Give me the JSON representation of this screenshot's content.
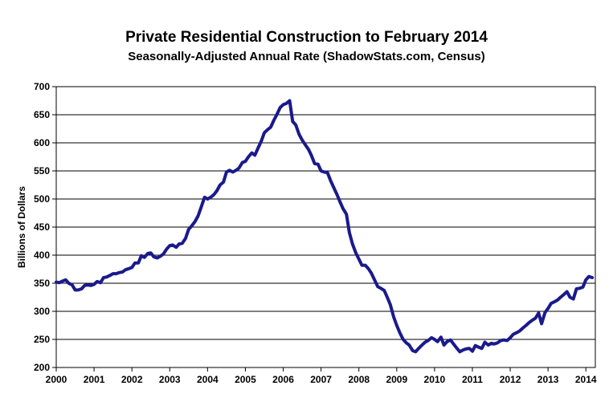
{
  "chart_data": {
    "type": "line",
    "title": "Private Residential Construction to February 2014",
    "subtitle": "Seasonally-Adjusted Annual Rate (ShadowStats.com, Census)",
    "xlabel": "",
    "ylabel": "Billions of Dollars",
    "xlim": [
      2000,
      2014.25
    ],
    "ylim": [
      200,
      700
    ],
    "x_ticks": [
      2000,
      2001,
      2002,
      2003,
      2004,
      2005,
      2006,
      2007,
      2008,
      2009,
      2010,
      2011,
      2012,
      2013,
      2014
    ],
    "x_tick_labels": [
      "2000",
      "2001",
      "2002",
      "2003",
      "2004",
      "2005",
      "2006",
      "2007",
      "2008",
      "2009",
      "2010",
      "2011",
      "2012",
      "2013",
      "2014"
    ],
    "y_ticks": [
      200,
      250,
      300,
      350,
      400,
      450,
      500,
      550,
      600,
      650,
      700
    ],
    "y_tick_labels": [
      "200",
      "250",
      "300",
      "350",
      "400",
      "450",
      "500",
      "550",
      "600",
      "650",
      "700"
    ],
    "grid": "horizontal",
    "legend": "none",
    "line_color": "#1a1a8c",
    "series": [
      {
        "values": [
          [
            2000.0,
            352
          ],
          [
            2000.08,
            351
          ],
          [
            2000.17,
            354
          ],
          [
            2000.25,
            356
          ],
          [
            2000.33,
            350
          ],
          [
            2000.42,
            347
          ],
          [
            2000.5,
            338
          ],
          [
            2000.58,
            338
          ],
          [
            2000.67,
            340
          ],
          [
            2000.75,
            346
          ],
          [
            2000.83,
            347
          ],
          [
            2000.92,
            346
          ],
          [
            2001.0,
            348
          ],
          [
            2001.08,
            353
          ],
          [
            2001.17,
            351
          ],
          [
            2001.25,
            360
          ],
          [
            2001.33,
            361
          ],
          [
            2001.42,
            364
          ],
          [
            2001.5,
            367
          ],
          [
            2001.58,
            367
          ],
          [
            2001.67,
            369
          ],
          [
            2001.75,
            370
          ],
          [
            2001.83,
            374
          ],
          [
            2001.92,
            376
          ],
          [
            2002.0,
            378
          ],
          [
            2002.08,
            386
          ],
          [
            2002.17,
            386
          ],
          [
            2002.25,
            399
          ],
          [
            2002.33,
            396
          ],
          [
            2002.42,
            403
          ],
          [
            2002.5,
            404
          ],
          [
            2002.58,
            397
          ],
          [
            2002.67,
            395
          ],
          [
            2002.75,
            398
          ],
          [
            2002.83,
            402
          ],
          [
            2002.92,
            411
          ],
          [
            2003.0,
            417
          ],
          [
            2003.08,
            418
          ],
          [
            2003.17,
            414
          ],
          [
            2003.25,
            420
          ],
          [
            2003.33,
            421
          ],
          [
            2003.42,
            430
          ],
          [
            2003.5,
            446
          ],
          [
            2003.58,
            452
          ],
          [
            2003.67,
            460
          ],
          [
            2003.75,
            470
          ],
          [
            2003.83,
            485
          ],
          [
            2003.92,
            503
          ],
          [
            2004.0,
            500
          ],
          [
            2004.08,
            503
          ],
          [
            2004.17,
            508
          ],
          [
            2004.25,
            515
          ],
          [
            2004.33,
            525
          ],
          [
            2004.42,
            530
          ],
          [
            2004.5,
            548
          ],
          [
            2004.58,
            551
          ],
          [
            2004.67,
            548
          ],
          [
            2004.75,
            551
          ],
          [
            2004.83,
            555
          ],
          [
            2004.92,
            565
          ],
          [
            2005.0,
            567
          ],
          [
            2005.08,
            575
          ],
          [
            2005.17,
            582
          ],
          [
            2005.25,
            578
          ],
          [
            2005.33,
            590
          ],
          [
            2005.42,
            603
          ],
          [
            2005.5,
            618
          ],
          [
            2005.58,
            623
          ],
          [
            2005.67,
            628
          ],
          [
            2005.75,
            640
          ],
          [
            2005.83,
            650
          ],
          [
            2005.92,
            663
          ],
          [
            2006.0,
            668
          ],
          [
            2006.08,
            670
          ],
          [
            2006.17,
            675
          ],
          [
            2006.25,
            638
          ],
          [
            2006.33,
            632
          ],
          [
            2006.42,
            615
          ],
          [
            2006.5,
            605
          ],
          [
            2006.58,
            597
          ],
          [
            2006.67,
            588
          ],
          [
            2006.75,
            577
          ],
          [
            2006.83,
            563
          ],
          [
            2006.92,
            562
          ],
          [
            2007.0,
            550
          ],
          [
            2007.08,
            548
          ],
          [
            2007.17,
            547
          ],
          [
            2007.25,
            533
          ],
          [
            2007.33,
            521
          ],
          [
            2007.42,
            508
          ],
          [
            2007.5,
            495
          ],
          [
            2007.58,
            483
          ],
          [
            2007.67,
            473
          ],
          [
            2007.75,
            440
          ],
          [
            2007.83,
            420
          ],
          [
            2007.92,
            404
          ],
          [
            2008.0,
            393
          ],
          [
            2008.08,
            382
          ],
          [
            2008.17,
            382
          ],
          [
            2008.25,
            376
          ],
          [
            2008.33,
            368
          ],
          [
            2008.42,
            355
          ],
          [
            2008.5,
            344
          ],
          [
            2008.58,
            341
          ],
          [
            2008.67,
            337
          ],
          [
            2008.75,
            325
          ],
          [
            2008.83,
            312
          ],
          [
            2008.92,
            290
          ],
          [
            2009.0,
            275
          ],
          [
            2009.08,
            262
          ],
          [
            2009.17,
            250
          ],
          [
            2009.25,
            244
          ],
          [
            2009.33,
            240
          ],
          [
            2009.42,
            230
          ],
          [
            2009.5,
            228
          ],
          [
            2009.58,
            234
          ],
          [
            2009.67,
            240
          ],
          [
            2009.75,
            245
          ],
          [
            2009.83,
            248
          ],
          [
            2009.92,
            253
          ],
          [
            2010.0,
            250
          ],
          [
            2010.08,
            246
          ],
          [
            2010.17,
            254
          ],
          [
            2010.25,
            240
          ],
          [
            2010.33,
            246
          ],
          [
            2010.42,
            249
          ],
          [
            2010.5,
            242
          ],
          [
            2010.58,
            235
          ],
          [
            2010.67,
            228
          ],
          [
            2010.75,
            231
          ],
          [
            2010.83,
            233
          ],
          [
            2010.92,
            234
          ],
          [
            2011.0,
            229
          ],
          [
            2011.08,
            239
          ],
          [
            2011.17,
            236
          ],
          [
            2011.25,
            234
          ],
          [
            2011.33,
            245
          ],
          [
            2011.42,
            240
          ],
          [
            2011.5,
            243
          ],
          [
            2011.58,
            242
          ],
          [
            2011.67,
            244
          ],
          [
            2011.75,
            248
          ],
          [
            2011.83,
            249
          ],
          [
            2011.92,
            248
          ],
          [
            2012.0,
            253
          ],
          [
            2012.08,
            259
          ],
          [
            2012.17,
            262
          ],
          [
            2012.25,
            265
          ],
          [
            2012.33,
            270
          ],
          [
            2012.42,
            275
          ],
          [
            2012.5,
            280
          ],
          [
            2012.58,
            284
          ],
          [
            2012.67,
            288
          ],
          [
            2012.75,
            297
          ],
          [
            2012.83,
            278
          ],
          [
            2012.92,
            298
          ],
          [
            2013.0,
            305
          ],
          [
            2013.08,
            314
          ],
          [
            2013.17,
            317
          ],
          [
            2013.25,
            320
          ],
          [
            2013.33,
            325
          ],
          [
            2013.42,
            330
          ],
          [
            2013.5,
            335
          ],
          [
            2013.58,
            325
          ],
          [
            2013.67,
            322
          ],
          [
            2013.75,
            340
          ],
          [
            2013.83,
            341
          ],
          [
            2013.92,
            343
          ],
          [
            2014.0,
            356
          ],
          [
            2014.08,
            362
          ],
          [
            2014.17,
            360
          ]
        ]
      }
    ]
  }
}
